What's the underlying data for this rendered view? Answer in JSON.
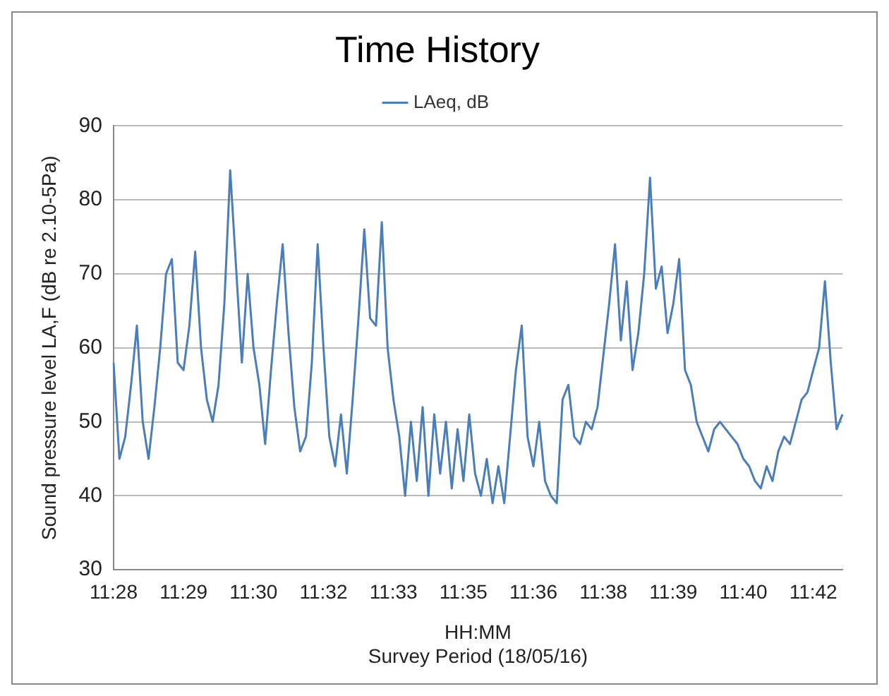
{
  "chart_data": {
    "type": "line",
    "title": "Time History",
    "xlabel": "HH:MM\nSurvey Period (18/05/16)",
    "ylabel": "Sound pressure level LA,F (dB re 2.10-5Pa)",
    "categories": [
      "11:28",
      null,
      null,
      null,
      null,
      null,
      null,
      null,
      null,
      null,
      null,
      null,
      "11:29",
      null,
      null,
      null,
      null,
      null,
      null,
      null,
      null,
      null,
      null,
      null,
      "11:30",
      null,
      null,
      null,
      null,
      null,
      null,
      null,
      null,
      null,
      null,
      null,
      "11:32",
      null,
      null,
      null,
      null,
      null,
      null,
      null,
      null,
      null,
      null,
      null,
      "11:33",
      null,
      null,
      null,
      null,
      null,
      null,
      null,
      null,
      null,
      null,
      null,
      "11:35",
      null,
      null,
      null,
      null,
      null,
      null,
      null,
      null,
      null,
      null,
      null,
      "11:36",
      null,
      null,
      null,
      null,
      null,
      null,
      null,
      null,
      null,
      null,
      null,
      "11:38",
      null,
      null,
      null,
      null,
      null,
      null,
      null,
      null,
      null,
      null,
      null,
      "11:39",
      null,
      null,
      null,
      null,
      null,
      null,
      null,
      null,
      null,
      null,
      null,
      "11:40",
      null,
      null,
      null,
      null,
      null,
      null,
      null,
      null,
      null,
      null,
      null,
      "11:42",
      null,
      null,
      null,
      null,
      null
    ],
    "series": [
      {
        "name": "LAeq, dB",
        "color": "#4a7ebb",
        "values": [
          58,
          45,
          48,
          55,
          63,
          50,
          45,
          52,
          60,
          70,
          72,
          58,
          57,
          63,
          73,
          60,
          53,
          50,
          55,
          66,
          84,
          71,
          58,
          70,
          60,
          55,
          47,
          57,
          66,
          74,
          62,
          52,
          46,
          48,
          58,
          74,
          60,
          48,
          44,
          51,
          43,
          53,
          64,
          76,
          64,
          63,
          77,
          60,
          53,
          48,
          40,
          50,
          42,
          52,
          40,
          51,
          43,
          50,
          41,
          49,
          42,
          51,
          43,
          40,
          45,
          39,
          44,
          39,
          48,
          57,
          63,
          48,
          44,
          50,
          42,
          40,
          39,
          53,
          55,
          48,
          47,
          50,
          49,
          52,
          59,
          66,
          74,
          61,
          69,
          57,
          62,
          70,
          83,
          68,
          71,
          62,
          66,
          72,
          57,
          55,
          50,
          48,
          46,
          49,
          50,
          49,
          48,
          47,
          45,
          44,
          42,
          41,
          44,
          42,
          46,
          48,
          47,
          50,
          53,
          54,
          57,
          60,
          69,
          58,
          49,
          51
        ]
      }
    ],
    "ylim": [
      30,
      90
    ],
    "yticks": [
      30,
      40,
      50,
      60,
      70,
      80,
      90
    ],
    "grid": "y",
    "legend": "top",
    "marker": "none",
    "line_style": "solid"
  }
}
